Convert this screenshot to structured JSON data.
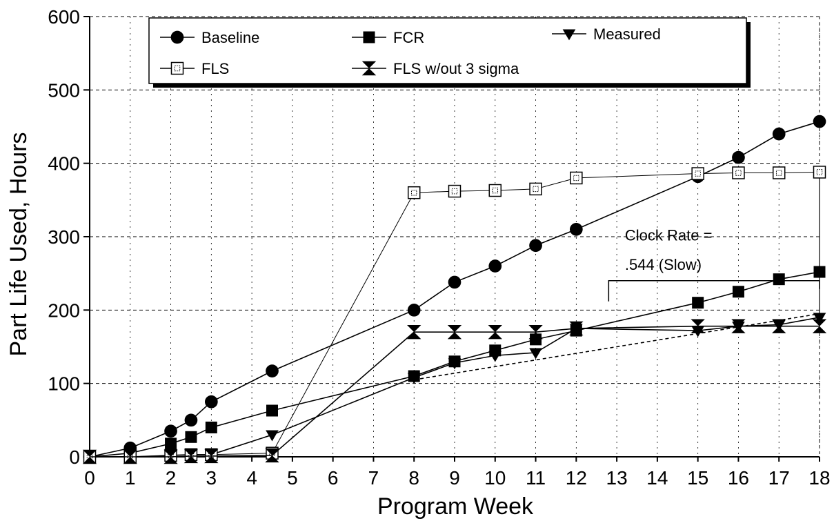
{
  "chart_data": {
    "type": "line",
    "title": "",
    "xlabel": "Program Week",
    "ylabel": "Part Life Used, Hours",
    "x_ticks": [
      {
        "pos": 0,
        "label": "0"
      },
      {
        "pos": 1,
        "label": "1"
      },
      {
        "pos": 2,
        "label": "2"
      },
      {
        "pos": 3,
        "label": "3"
      },
      {
        "pos": 4,
        "label": "4"
      },
      {
        "pos": 5,
        "label": "5"
      },
      {
        "pos": 6,
        "label": "6"
      },
      {
        "pos": 7,
        "label": "7"
      },
      {
        "pos": 8,
        "label": "8"
      },
      {
        "pos": 9,
        "label": "9"
      },
      {
        "pos": 10,
        "label": "10"
      },
      {
        "pos": 11,
        "label": "11"
      },
      {
        "pos": 12,
        "label": "12"
      },
      {
        "pos": 13,
        "label": "13"
      },
      {
        "pos": 14,
        "label": "14"
      },
      {
        "pos": 15,
        "label": "15"
      },
      {
        "pos": 16,
        "label": "16"
      },
      {
        "pos": 17,
        "label": "17"
      },
      {
        "pos": 18,
        "label": "18"
      }
    ],
    "xlim": [
      0,
      18
    ],
    "ylim": [
      0,
      600
    ],
    "y_ticks": [
      0,
      100,
      200,
      300,
      400,
      500,
      600
    ],
    "grid": "horizontal dashed",
    "legend": "top",
    "series": [
      {
        "name": "Baseline",
        "marker": "circle",
        "x": [
          0,
          1,
          2,
          2.5,
          3,
          4.5,
          8,
          9,
          10,
          11,
          12,
          15,
          16,
          17,
          18
        ],
        "y": [
          0,
          12,
          35,
          50,
          75,
          117,
          200,
          238,
          260,
          288,
          310,
          382,
          408,
          440,
          457
        ]
      },
      {
        "name": "FCR",
        "marker": "square",
        "x": [
          0,
          1,
          2,
          2.5,
          3,
          4.5,
          8,
          9,
          10,
          11,
          12,
          15,
          16,
          17,
          18
        ],
        "y": [
          0,
          5,
          18,
          27,
          40,
          63,
          110,
          130,
          145,
          160,
          172,
          210,
          225,
          242,
          252
        ]
      },
      {
        "name": "Measured",
        "marker": "triangle-down",
        "x": [
          0,
          1,
          2,
          2.5,
          3,
          4.5,
          8,
          9,
          10,
          11,
          12,
          15,
          16,
          17,
          18
        ],
        "y": [
          0,
          0,
          2,
          3,
          3,
          30,
          108,
          128,
          138,
          142,
          175,
          172,
          178,
          180,
          190
        ]
      },
      {
        "name": "FLS",
        "marker": "square-open",
        "x": [
          0,
          1,
          2,
          2.5,
          3,
          4.5,
          8,
          9,
          10,
          11,
          12,
          15,
          16,
          17,
          18
        ],
        "y": [
          0,
          0,
          2,
          3,
          3,
          5,
          360,
          362,
          363,
          365,
          380,
          386,
          387,
          387,
          388
        ]
      },
      {
        "name": "FLS w/out 3 sigma",
        "marker": "hourglass",
        "x": [
          0,
          1,
          2,
          2.5,
          3,
          4.5,
          8,
          9,
          10,
          11,
          12,
          15,
          16,
          17,
          18
        ],
        "y": [
          0,
          0,
          0,
          1,
          1,
          2,
          170,
          170,
          170,
          170,
          175,
          178,
          178,
          178,
          178
        ]
      }
    ],
    "trend_line": {
      "x": [
        8,
        18
      ],
      "y": [
        105,
        195
      ]
    },
    "annotations": [
      {
        "text": "Clock Rate =",
        "at": [
          13.2,
          295
        ]
      },
      {
        "text": ".544 (Slow)",
        "at": [
          13.2,
          255
        ]
      }
    ],
    "bracket": {
      "x_start": 12.8,
      "x_end": 18,
      "y": 240
    },
    "colors": {
      "line": "#000000",
      "grid": "#000000",
      "background": "#ffffff"
    }
  }
}
